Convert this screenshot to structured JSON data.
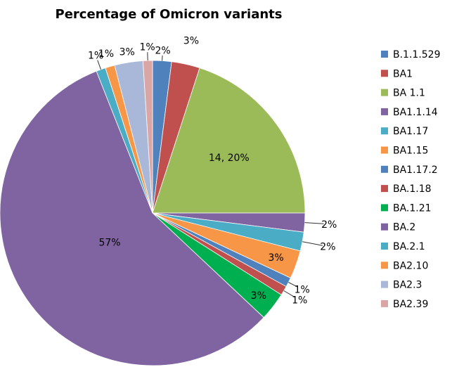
{
  "chart_data": {
    "type": "pie",
    "title": "Percentage of Omicron variants",
    "legend_position": "right",
    "slices": [
      {
        "name": "B.1.1.529",
        "value": 2,
        "label": "2%",
        "color": "#4F81BD"
      },
      {
        "name": "BA1",
        "value": 3,
        "label": "3%",
        "color": "#C0504D"
      },
      {
        "name": "BA 1.1",
        "value": 20,
        "label": "14, 20%",
        "color": "#9BBB59"
      },
      {
        "name": "BA1.1.14",
        "value": 2,
        "label": "2%",
        "color": "#8064A2"
      },
      {
        "name": "BA1.17",
        "value": 2,
        "label": "2%",
        "color": "#4BACC6"
      },
      {
        "name": "BA1.15",
        "value": 3,
        "label": "3%",
        "color": "#F79646"
      },
      {
        "name": "BA1.17.2",
        "value": 1,
        "label": "1%",
        "color": "#4F81BD"
      },
      {
        "name": "BA.1.18",
        "value": 1,
        "label": "1%",
        "color": "#C0504D"
      },
      {
        "name": "BA.1.21",
        "value": 3,
        "label": "3%",
        "color": "#00B050"
      },
      {
        "name": "BA.2",
        "value": 57,
        "label": "57%",
        "color": "#8064A2"
      },
      {
        "name": "BA.2.1",
        "value": 1,
        "label": "1%",
        "color": "#4BACC6"
      },
      {
        "name": "BA2.10",
        "value": 1,
        "label": "1%",
        "color": "#F79646"
      },
      {
        "name": "BA2.3",
        "value": 3,
        "label": "3%",
        "color": "#A9B8D8"
      },
      {
        "name": "BA2.39",
        "value": 1,
        "label": "1%",
        "color": "#D9A5A5"
      }
    ]
  }
}
